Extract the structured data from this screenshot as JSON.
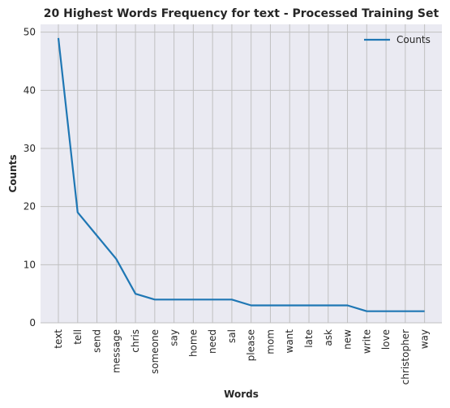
{
  "chart_data": {
    "type": "line",
    "title": "20 Highest Words Frequency for text - Processed Training Set",
    "xlabel": "Words",
    "ylabel": "Counts",
    "categories": [
      "text",
      "tell",
      "send",
      "message",
      "chris",
      "someone",
      "say",
      "home",
      "need",
      "sal",
      "please",
      "mom",
      "want",
      "late",
      "ask",
      "new",
      "write",
      "love",
      "christopher",
      "way"
    ],
    "series": [
      {
        "name": "Counts",
        "color": "#1f77b4",
        "values": [
          49,
          19,
          15,
          11,
          5,
          4,
          4,
          4,
          4,
          4,
          3,
          3,
          3,
          3,
          3,
          3,
          2,
          2,
          2,
          2
        ]
      }
    ],
    "ylim": [
      0,
      51.35
    ],
    "yticks": [
      0,
      10,
      20,
      30,
      40,
      50
    ],
    "grid": true,
    "legend": "top-right",
    "background": "#eaeaf2"
  }
}
